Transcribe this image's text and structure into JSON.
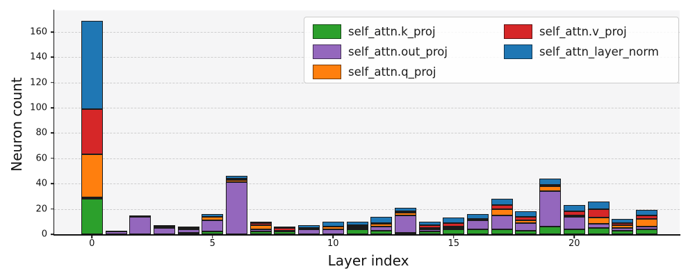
{
  "chart_data": {
    "type": "bar",
    "stacked": true,
    "title": "",
    "xlabel": "Layer index",
    "ylabel": "Neuron count",
    "categories": [
      0,
      1,
      2,
      3,
      4,
      5,
      6,
      7,
      8,
      9,
      10,
      11,
      12,
      13,
      14,
      15,
      16,
      17,
      18,
      19,
      20,
      21,
      22,
      23
    ],
    "series": [
      {
        "name": "self_attn.k_proj",
        "color": "#2ca02c",
        "values": [
          28,
          0,
          0,
          0,
          1,
          2,
          0,
          2,
          2,
          0,
          0,
          4,
          3,
          1,
          2,
          4,
          4,
          4,
          3,
          6,
          4,
          5,
          3,
          4
        ]
      },
      {
        "name": "self_attn.out_proj",
        "color": "#9467bd",
        "values": [
          1,
          2,
          14,
          5,
          3,
          9,
          41,
          2,
          1,
          4,
          4,
          1,
          3,
          14,
          2,
          1,
          7,
          11,
          6,
          28,
          10,
          3,
          2,
          2
        ]
      },
      {
        "name": "self_attn.q_proj",
        "color": "#ff7f0e",
        "values": [
          34,
          0,
          0,
          1,
          0,
          3,
          2,
          3,
          0,
          1,
          2,
          1,
          2,
          2,
          1,
          1,
          1,
          5,
          2,
          4,
          1,
          5,
          2,
          6
        ]
      },
      {
        "name": "self_attn.v_proj",
        "color": "#d62728",
        "values": [
          36,
          0,
          1,
          0,
          1,
          0,
          1,
          2,
          2,
          0,
          0,
          1,
          1,
          1,
          2,
          3,
          0,
          3,
          3,
          1,
          3,
          7,
          2,
          3
        ]
      },
      {
        "name": "self_attn_layer_norm",
        "color": "#1f77b4",
        "values": [
          70,
          1,
          0,
          1,
          1,
          2,
          2,
          1,
          1,
          2,
          4,
          3,
          5,
          3,
          3,
          4,
          4,
          5,
          4,
          5,
          5,
          6,
          3,
          4
        ]
      }
    ],
    "yticks": [
      0,
      20,
      40,
      60,
      80,
      100,
      120,
      140,
      160
    ],
    "xticks": [
      0,
      5,
      10,
      15,
      20
    ],
    "ylim": [
      0,
      177
    ],
    "grid": "horizontal-dashed",
    "legend_position": "upper-right, 2 columns, column-major"
  }
}
